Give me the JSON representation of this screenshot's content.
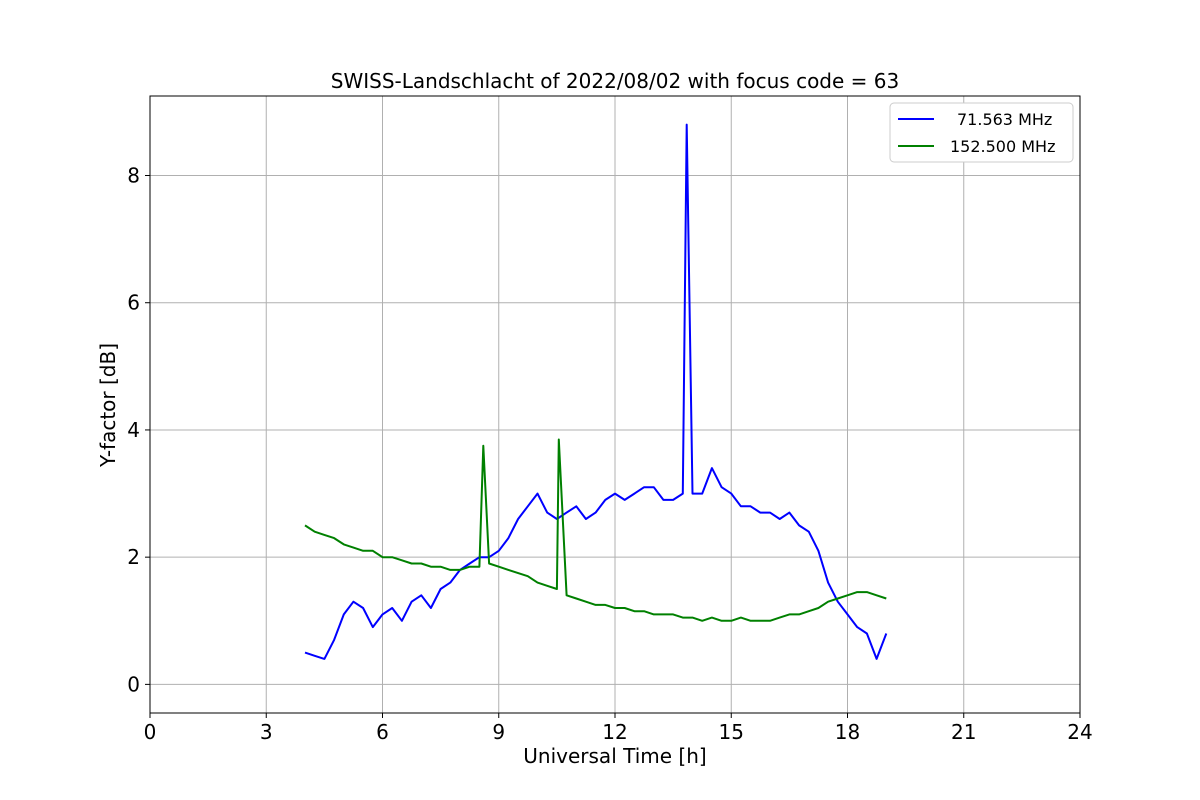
{
  "chart_data": {
    "type": "line",
    "title": "SWISS-Landschlacht of 2022/08/02 with focus code = 63",
    "xlabel": "Universal Time [h]",
    "ylabel": "Y-factor [dB]",
    "xlim": [
      0,
      24
    ],
    "ylim": [
      -0.45,
      9.25
    ],
    "xticks": [
      0,
      3,
      6,
      9,
      12,
      15,
      18,
      21,
      24
    ],
    "yticks": [
      0,
      2,
      4,
      6,
      8
    ],
    "grid": true,
    "legend_position": "top-right",
    "series": [
      {
        "name": "71.563 MHz",
        "color": "#0000ff",
        "x": [
          4.0,
          4.25,
          4.5,
          4.75,
          5.0,
          5.25,
          5.5,
          5.75,
          6.0,
          6.25,
          6.5,
          6.75,
          7.0,
          7.25,
          7.5,
          7.75,
          8.0,
          8.25,
          8.5,
          8.75,
          9.0,
          9.25,
          9.5,
          9.75,
          10.0,
          10.25,
          10.5,
          10.75,
          11.0,
          11.25,
          11.5,
          11.75,
          12.0,
          12.25,
          12.5,
          12.75,
          13.0,
          13.25,
          13.5,
          13.75,
          13.85,
          14.0,
          14.25,
          14.5,
          14.75,
          15.0,
          15.25,
          15.5,
          15.75,
          16.0,
          16.25,
          16.5,
          16.75,
          17.0,
          17.25,
          17.5,
          17.75,
          18.0,
          18.25,
          18.5,
          18.75,
          19.0
        ],
        "y": [
          0.5,
          0.45,
          0.4,
          0.7,
          1.1,
          1.3,
          1.2,
          0.9,
          1.1,
          1.2,
          1.0,
          1.3,
          1.4,
          1.2,
          1.5,
          1.6,
          1.8,
          1.9,
          2.0,
          2.0,
          2.1,
          2.3,
          2.6,
          2.8,
          3.0,
          2.7,
          2.6,
          2.7,
          2.8,
          2.6,
          2.7,
          2.9,
          3.0,
          2.9,
          3.0,
          3.1,
          3.1,
          2.9,
          2.9,
          3.0,
          8.8,
          3.0,
          3.0,
          3.4,
          3.1,
          3.0,
          2.8,
          2.8,
          2.7,
          2.7,
          2.6,
          2.7,
          2.5,
          2.4,
          2.1,
          1.6,
          1.3,
          1.1,
          0.9,
          0.8,
          0.4,
          0.8
        ]
      },
      {
        "name": "152.500 MHz",
        "color": "#008000",
        "x": [
          4.0,
          4.25,
          4.5,
          4.75,
          5.0,
          5.25,
          5.5,
          5.75,
          6.0,
          6.25,
          6.5,
          6.75,
          7.0,
          7.25,
          7.5,
          7.75,
          8.0,
          8.25,
          8.5,
          8.6,
          8.75,
          9.0,
          9.25,
          9.5,
          9.75,
          10.0,
          10.25,
          10.5,
          10.55,
          10.75,
          11.0,
          11.25,
          11.5,
          11.75,
          12.0,
          12.25,
          12.5,
          12.75,
          13.0,
          13.25,
          13.5,
          13.75,
          14.0,
          14.25,
          14.5,
          14.75,
          15.0,
          15.25,
          15.5,
          15.75,
          16.0,
          16.25,
          16.5,
          16.75,
          17.0,
          17.25,
          17.5,
          17.75,
          18.0,
          18.25,
          18.5,
          18.75,
          19.0
        ],
        "y": [
          2.5,
          2.4,
          2.35,
          2.3,
          2.2,
          2.15,
          2.1,
          2.1,
          2.0,
          2.0,
          1.95,
          1.9,
          1.9,
          1.85,
          1.85,
          1.8,
          1.8,
          1.85,
          1.85,
          3.75,
          1.9,
          1.85,
          1.8,
          1.75,
          1.7,
          1.6,
          1.55,
          1.5,
          3.85,
          1.4,
          1.35,
          1.3,
          1.25,
          1.25,
          1.2,
          1.2,
          1.15,
          1.15,
          1.1,
          1.1,
          1.1,
          1.05,
          1.05,
          1.0,
          1.05,
          1.0,
          1.0,
          1.05,
          1.0,
          1.0,
          1.0,
          1.05,
          1.1,
          1.1,
          1.15,
          1.2,
          1.3,
          1.35,
          1.4,
          1.45,
          1.45,
          1.4,
          1.35
        ]
      }
    ]
  }
}
